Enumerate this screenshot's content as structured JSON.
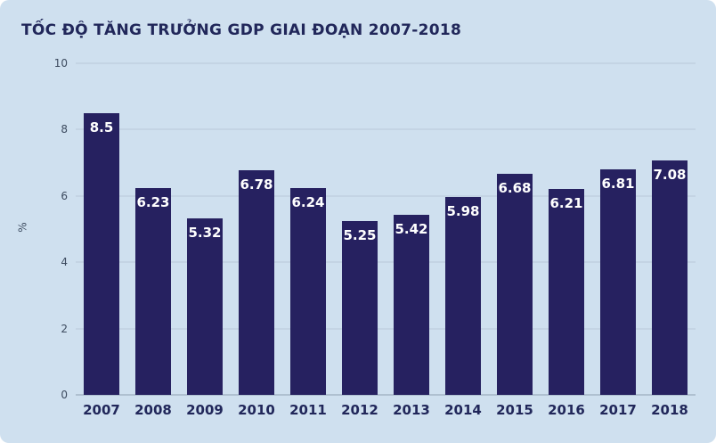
{
  "chart_data": {
    "type": "bar",
    "title": "TỐC ĐỘ TĂNG TRƯỞNG GDP GIAI ĐOẠN 2007-2018",
    "ylabel": "%",
    "xlabel": "",
    "categories": [
      "2007",
      "2008",
      "2009",
      "2010",
      "2011",
      "2012",
      "2013",
      "2014",
      "2015",
      "2016",
      "2017",
      "2018"
    ],
    "values": [
      8.5,
      6.23,
      5.32,
      6.78,
      6.24,
      5.25,
      5.42,
      5.98,
      6.68,
      6.21,
      6.81,
      7.08
    ],
    "value_labels": [
      "8.5",
      "6.23",
      "5.32",
      "6.78",
      "6.24",
      "5.25",
      "5.42",
      "5.98",
      "6.68",
      "6.21",
      "6.81",
      "7.08"
    ],
    "ylim": [
      0,
      10
    ],
    "yticks": [
      0,
      2,
      4,
      6,
      8,
      10
    ],
    "grid": "horizontal",
    "legend": "none",
    "colors": {
      "background": "#cfe0ef",
      "bar": "#262160",
      "title": "#21275a",
      "gridline": "#b9c8d8",
      "baseline": "#8fa0b2",
      "tick_label": "#3c4a5e",
      "x_label": "#21275a",
      "value_label": "#ffffff"
    }
  }
}
